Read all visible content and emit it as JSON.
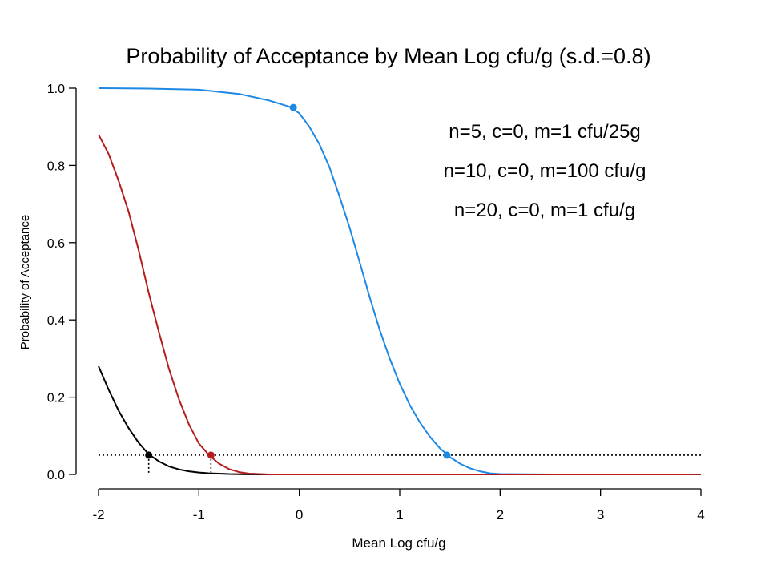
{
  "chart_data": {
    "type": "line",
    "title": "Probability of Acceptance by Mean Log cfu/g (s.d.=0.8)",
    "xlabel": "Mean Log cfu/g",
    "ylabel": "Probability of Acceptance",
    "xlim": [
      -2,
      4
    ],
    "ylim": [
      0,
      1
    ],
    "x_ticks": [
      -2,
      -1,
      0,
      1,
      2,
      3,
      4
    ],
    "x_tick_labels": [
      "-2",
      "-1",
      "0",
      "1",
      "2",
      "3",
      "4"
    ],
    "y_ticks": [
      0,
      0.2,
      0.4,
      0.6,
      0.8,
      1.0
    ],
    "y_tick_labels": [
      "0.0",
      "0.2",
      "0.4",
      "0.6",
      "0.8",
      "1.0"
    ],
    "grid": false,
    "legend_position": "top-right",
    "reference_line": {
      "y": 0.05,
      "style": "dotted"
    },
    "series": [
      {
        "name": "n=5, c=0, m=1 cfu/25g",
        "color": "#000000",
        "x": [
          -2.0,
          -1.9,
          -1.8,
          -1.7,
          -1.6,
          -1.5,
          -1.4,
          -1.3,
          -1.2,
          -1.1,
          -1.0,
          -0.9,
          -0.8,
          -0.7,
          -0.6,
          -0.5,
          -0.4,
          -0.3
        ],
        "values": [
          0.28,
          0.22,
          0.165,
          0.12,
          0.082,
          0.052,
          0.034,
          0.021,
          0.013,
          0.008,
          0.005,
          0.003,
          0.002,
          0.001,
          0.0006,
          0.0003,
          0.0001,
          0.0
        ],
        "marker": {
          "x": -1.5,
          "y": 0.05
        }
      },
      {
        "name": "n=10, c=0, m=100 cfu/g",
        "color": "#1E88E5",
        "x": [
          -2.0,
          -1.5,
          -1.0,
          -0.6,
          -0.3,
          -0.1,
          0.0,
          0.1,
          0.2,
          0.3,
          0.4,
          0.5,
          0.6,
          0.7,
          0.8,
          0.9,
          1.0,
          1.1,
          1.2,
          1.3,
          1.4,
          1.5,
          1.6,
          1.7,
          1.8,
          1.9,
          2.0,
          2.5,
          4.0
        ],
        "values": [
          1.0,
          0.999,
          0.996,
          0.985,
          0.968,
          0.952,
          0.935,
          0.9,
          0.855,
          0.795,
          0.72,
          0.64,
          0.55,
          0.46,
          0.375,
          0.3,
          0.235,
          0.18,
          0.135,
          0.098,
          0.068,
          0.045,
          0.028,
          0.016,
          0.008,
          0.003,
          0.001,
          0.0,
          0.0
        ],
        "marker": {
          "x": 1.47,
          "y": 0.05
        },
        "extra_marker": {
          "x": -0.06,
          "y": 0.95
        }
      },
      {
        "name": "n=20, c=0, m=1 cfu/g",
        "color": "#B71C1C",
        "x": [
          -2.0,
          -1.9,
          -1.8,
          -1.7,
          -1.6,
          -1.5,
          -1.4,
          -1.3,
          -1.2,
          -1.1,
          -1.0,
          -0.9,
          -0.8,
          -0.7,
          -0.6,
          -0.5,
          -0.4,
          -0.3,
          0.0,
          4.0
        ],
        "values": [
          0.88,
          0.83,
          0.76,
          0.68,
          0.58,
          0.47,
          0.37,
          0.275,
          0.195,
          0.13,
          0.08,
          0.05,
          0.028,
          0.014,
          0.006,
          0.002,
          0.001,
          0.0,
          0.0,
          0.0
        ],
        "marker": {
          "x": -0.88,
          "y": 0.05
        }
      }
    ]
  }
}
